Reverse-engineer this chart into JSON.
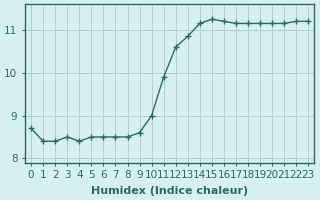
{
  "x": [
    0,
    1,
    2,
    3,
    4,
    5,
    6,
    7,
    8,
    9,
    10,
    11,
    12,
    13,
    14,
    15,
    16,
    17,
    18,
    19,
    20,
    21,
    22,
    23
  ],
  "y": [
    8.7,
    8.4,
    8.4,
    8.5,
    8.4,
    8.5,
    8.5,
    8.5,
    8.5,
    8.6,
    9.0,
    9.9,
    10.6,
    10.85,
    11.15,
    11.25,
    11.2,
    11.15,
    11.15,
    11.15,
    11.15,
    11.15,
    11.2,
    11.2
  ],
  "line_color": "#2e6b5e",
  "marker": "+",
  "bg_color": "#d6f0ef",
  "grid_color": "#b0cece",
  "xlabel": "Humidex (Indice chaleur)",
  "xlabel_color": "#2e6b5e",
  "xtick_labels": [
    "0",
    "1",
    "2",
    "3",
    "4",
    "5",
    "6",
    "7",
    "8",
    "9",
    "10",
    "11",
    "12",
    "13",
    "14",
    "15",
    "16",
    "17",
    "18",
    "19",
    "20",
    "21",
    "22",
    "23"
  ],
  "yticks": [
    8,
    9,
    10,
    11
  ],
  "ylim": [
    7.9,
    11.6
  ],
  "xlim": [
    -0.5,
    23.5
  ],
  "tick_color": "#2e6b5e",
  "spine_color": "#2e6b5e",
  "fontsize_xlabel": 8,
  "fontsize_tick": 7.5
}
